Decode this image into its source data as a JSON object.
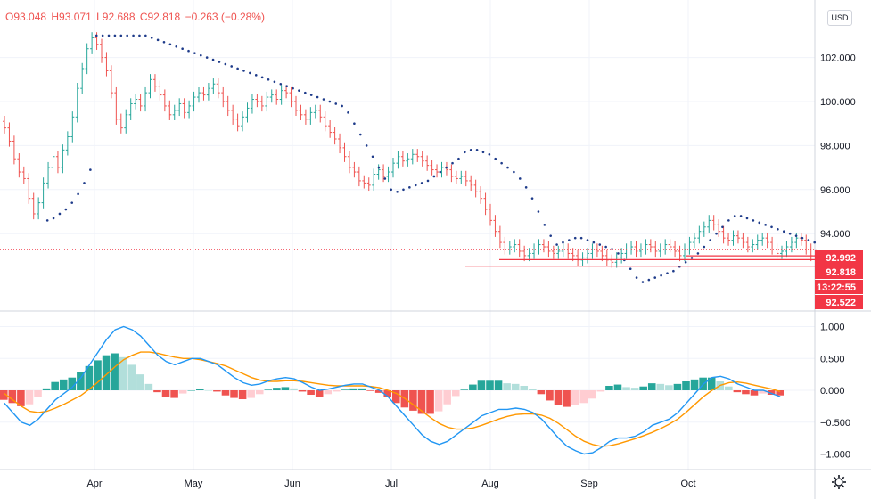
{
  "ohlc": {
    "o": "O93.048",
    "h": "H93.071",
    "l": "L92.688",
    "c": "C92.818",
    "chg": "−0.263 (−0.28%)"
  },
  "currency": "USD",
  "price_labels": [
    {
      "text": "92.992",
      "value": 92.992,
      "color": "#f23645"
    },
    {
      "text": "92.818",
      "value": 92.818,
      "color": "#f23645"
    },
    {
      "text": "13:22:55",
      "value": 92.6,
      "color": "#f23645"
    },
    {
      "text": "92.522",
      "value": 92.522,
      "color": "#f23645"
    }
  ],
  "colors": {
    "up": "#26a69a",
    "down": "#ef5350",
    "sar": "#1e3b8a",
    "macd": "#2196f3",
    "signal": "#ff9800",
    "level": "#f23645",
    "hist_up_strong": "#26a69a",
    "hist_up_weak": "#b2dfdb",
    "hist_dn_strong": "#ef5350",
    "hist_dn_weak": "#ffcdd2"
  },
  "chart_data": [
    {
      "type": "candlestick",
      "x_tick_labels": [
        "Apr",
        "May",
        "Jun",
        "Jul",
        "Aug",
        "Sep",
        "Oct"
      ],
      "x_tick_days": [
        30,
        60,
        90,
        120,
        150,
        180,
        210
      ],
      "y_tick_labels": [
        "102.000",
        "100.000",
        "98.000",
        "96.000",
        "94.000"
      ],
      "y_ticks": [
        102,
        100,
        98,
        96,
        94
      ],
      "close": [
        98.8,
        98.2,
        97.4,
        96.8,
        96.5,
        95.6,
        94.9,
        95.4,
        96.3,
        97.0,
        97.5,
        97.0,
        97.8,
        98.4,
        99.3,
        100.6,
        101.5,
        102.4,
        102.9,
        102.6,
        102.0,
        101.4,
        100.4,
        99.2,
        98.8,
        99.4,
        99.9,
        100.1,
        99.8,
        100.4,
        101.0,
        100.7,
        100.3,
        99.8,
        99.4,
        99.6,
        99.9,
        99.5,
        99.8,
        100.2,
        100.4,
        100.3,
        100.6,
        100.8,
        100.4,
        100.0,
        99.6,
        99.2,
        98.9,
        99.3,
        99.7,
        100.1,
        100.0,
        99.8,
        100.2,
        100.3,
        100.1,
        100.5,
        100.4,
        100.0,
        99.6,
        99.4,
        99.2,
        99.5,
        99.6,
        99.3,
        98.9,
        98.6,
        98.3,
        97.9,
        97.5,
        97.0,
        96.8,
        96.4,
        96.3,
        96.2,
        96.7,
        96.9,
        96.6,
        96.8,
        97.2,
        97.5,
        97.3,
        97.4,
        97.6,
        97.5,
        97.3,
        97.1,
        96.9,
        96.8,
        97.0,
        96.9,
        96.6,
        96.5,
        96.6,
        96.4,
        96.2,
        95.9,
        95.6,
        95.1,
        94.6,
        94.1,
        93.6,
        93.3,
        93.4,
        93.5,
        93.2,
        93.0,
        93.1,
        93.3,
        93.5,
        93.4,
        93.2,
        93.1,
        93.2,
        93.3,
        93.1,
        93.0,
        92.8,
        92.9,
        93.1,
        93.3,
        93.2,
        93.0,
        92.8,
        92.7,
        92.9,
        93.1,
        93.3,
        93.4,
        93.2,
        93.3,
        93.5,
        93.4,
        93.2,
        93.3,
        93.5,
        93.4,
        93.2,
        93.0,
        93.3,
        93.6,
        93.8,
        94.1,
        94.3,
        94.6,
        94.4,
        94.1,
        93.8,
        93.7,
        93.9,
        93.8,
        93.6,
        93.4,
        93.5,
        93.7,
        93.8,
        93.6,
        93.3,
        93.1,
        93.2,
        93.4,
        93.6,
        93.8,
        93.7,
        93.3,
        93.0,
        92.8
      ],
      "sar": [
        null,
        null,
        null,
        null,
        null,
        null,
        null,
        94.6,
        94.7,
        94.9,
        95.1,
        95.4,
        95.8,
        96.3,
        96.9,
        103.0,
        103.0,
        103.0,
        103.0,
        103.0,
        103.0,
        103.0,
        103.0,
        103.0,
        102.9,
        102.8,
        102.7,
        102.6,
        102.5,
        102.4,
        102.3,
        102.2,
        102.1,
        102.0,
        101.9,
        101.8,
        101.7,
        101.6,
        101.5,
        101.4,
        101.3,
        101.2,
        101.1,
        101.0,
        100.9,
        100.8,
        100.7,
        100.6,
        100.5,
        100.4,
        100.3,
        100.2,
        100.1,
        100.0,
        99.9,
        99.8,
        99.5,
        99.0,
        98.5,
        98.0,
        97.5,
        97.0,
        96.5,
        96.0,
        95.9,
        96.0,
        96.1,
        96.2,
        96.3,
        96.4,
        96.6,
        96.8,
        97.0,
        97.2,
        97.4,
        97.7,
        97.8,
        97.8,
        97.7,
        97.6,
        97.4,
        97.2,
        97.0,
        96.8,
        96.5,
        96.1,
        95.6,
        95.0,
        94.4,
        93.9,
        93.5,
        93.6,
        93.7,
        93.8,
        93.8,
        93.7,
        93.6,
        93.5,
        93.4,
        93.3,
        93.1,
        92.8,
        92.4,
        92.0,
        91.8,
        91.9,
        92.0,
        92.1,
        92.2,
        92.3,
        92.5,
        92.7,
        92.9,
        93.1,
        93.4,
        93.7,
        94.0,
        94.3,
        94.6,
        94.8,
        94.8,
        94.7,
        94.6,
        94.5,
        94.4,
        94.3,
        94.2,
        94.1,
        94.0,
        93.9,
        93.8,
        93.7,
        93.6
      ],
      "level_lines": [
        92.992,
        92.818,
        92.522
      ],
      "last_price": 92.818
    },
    {
      "type": "macd",
      "y_tick_labels": [
        "1.000",
        "0.500",
        "0.000",
        "−0.500",
        "−1.000"
      ],
      "y_ticks": [
        1.0,
        0.5,
        0.0,
        -0.5,
        -1.0
      ],
      "macd": [
        -0.2,
        -0.35,
        -0.5,
        -0.55,
        -0.45,
        -0.3,
        -0.15,
        -0.05,
        0.05,
        0.2,
        0.4,
        0.6,
        0.8,
        0.95,
        1.0,
        0.95,
        0.85,
        0.7,
        0.55,
        0.45,
        0.4,
        0.45,
        0.5,
        0.5,
        0.45,
        0.4,
        0.3,
        0.2,
        0.12,
        0.08,
        0.1,
        0.15,
        0.18,
        0.2,
        0.18,
        0.12,
        0.05,
        0.0,
        0.02,
        0.05,
        0.08,
        0.1,
        0.1,
        0.05,
        0.0,
        -0.1,
        -0.25,
        -0.4,
        -0.55,
        -0.7,
        -0.8,
        -0.85,
        -0.8,
        -0.7,
        -0.6,
        -0.5,
        -0.4,
        -0.35,
        -0.3,
        -0.3,
        -0.28,
        -0.3,
        -0.35,
        -0.45,
        -0.6,
        -0.75,
        -0.88,
        -0.95,
        -1.0,
        -0.98,
        -0.9,
        -0.8,
        -0.75,
        -0.75,
        -0.72,
        -0.65,
        -0.55,
        -0.5,
        -0.45,
        -0.35,
        -0.2,
        -0.05,
        0.1,
        0.2,
        0.22,
        0.18,
        0.1,
        0.05,
        0.0,
        0.0,
        -0.05,
        -0.1
      ],
      "signal": [
        -0.05,
        -0.15,
        -0.25,
        -0.33,
        -0.35,
        -0.33,
        -0.28,
        -0.22,
        -0.15,
        -0.08,
        0.02,
        0.13,
        0.25,
        0.37,
        0.48,
        0.55,
        0.6,
        0.6,
        0.58,
        0.55,
        0.52,
        0.5,
        0.5,
        0.48,
        0.45,
        0.42,
        0.38,
        0.32,
        0.26,
        0.2,
        0.16,
        0.14,
        0.14,
        0.15,
        0.15,
        0.14,
        0.12,
        0.1,
        0.08,
        0.07,
        0.07,
        0.07,
        0.07,
        0.06,
        0.04,
        0.0,
        -0.05,
        -0.13,
        -0.23,
        -0.33,
        -0.43,
        -0.52,
        -0.58,
        -0.61,
        -0.61,
        -0.59,
        -0.55,
        -0.5,
        -0.45,
        -0.41,
        -0.38,
        -0.37,
        -0.37,
        -0.39,
        -0.44,
        -0.52,
        -0.62,
        -0.72,
        -0.8,
        -0.85,
        -0.88,
        -0.87,
        -0.84,
        -0.8,
        -0.76,
        -0.71,
        -0.66,
        -0.6,
        -0.53,
        -0.45,
        -0.34,
        -0.22,
        -0.1,
        0.0,
        0.08,
        0.12,
        0.13,
        0.11,
        0.08,
        0.05,
        0.02,
        -0.02
      ],
      "ylim": [
        -1.15,
        1.15
      ]
    }
  ]
}
